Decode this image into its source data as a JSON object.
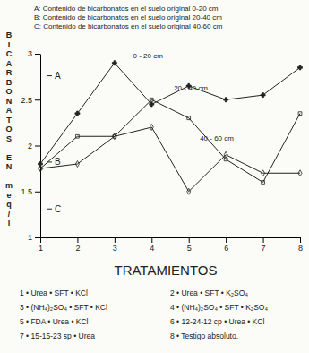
{
  "chart_data": {
    "type": "line",
    "notes": [
      "A: Contenido de bicarbonatos en el suelo original 0-20 cm",
      "B: Contenido de bicarbonatos en el suelo original 20-40 cm",
      "C: Contenido de bicarbonatos en el suelo original 40-60 cm"
    ],
    "y_label": "BICARBONATOS EN meq/l",
    "x_label": "TRATAMIENTOS",
    "x": [
      1,
      2,
      3,
      4,
      5,
      6,
      7,
      8
    ],
    "xlim": [
      1,
      8
    ],
    "xticks": [
      1,
      2,
      3,
      4,
      5,
      6,
      7,
      8
    ],
    "ylim": [
      1,
      3
    ],
    "yticks": [
      1,
      1.5,
      2,
      2.5,
      3
    ],
    "grid": false,
    "series": [
      {
        "name": "0 - 20 cm",
        "color": "#222222",
        "marker": "plus",
        "values": [
          1.8,
          2.35,
          2.9,
          2.45,
          2.65,
          2.5,
          2.55,
          2.85
        ]
      },
      {
        "name": "20 - 40 cm",
        "color": "#222222",
        "marker": "square",
        "values": [
          1.75,
          2.1,
          2.1,
          2.5,
          2.3,
          1.85,
          1.6,
          2.35
        ]
      },
      {
        "name": "40 - 60 cm",
        "color": "#222222",
        "marker": "diamond",
        "values": [
          1.75,
          1.8,
          2.1,
          2.2,
          1.5,
          1.9,
          1.7,
          1.7
        ]
      }
    ],
    "annotations": [
      {
        "text": "0 - 20 cm",
        "x": 3.5,
        "y": 2.95
      },
      {
        "text": "20 - 40 cm",
        "x": 4.6,
        "y": 2.6
      },
      {
        "text": "40 - 60 cm",
        "x": 5.3,
        "y": 2.05
      }
    ],
    "reference_levels": [
      {
        "label": "A",
        "value": 2.76
      },
      {
        "label": "B",
        "value": 1.82
      },
      {
        "label": "C",
        "value": 1.31
      }
    ],
    "treatments": [
      "1 • Urea • SFT • KCl",
      "2 • Urea • SFT • K₂SO₄",
      "3 • (NH₄)₂SO₄ • SFT • KCl",
      "4 • (NH₄)₂SO₄ • SFT • K₂SO₄",
      "5 • FDA • Urea • KCl",
      "6 • 12-24-12 cp • Urea • KCl",
      "7 • 15-15-23 sp • Urea",
      "8 • Testigo absoluto."
    ]
  }
}
